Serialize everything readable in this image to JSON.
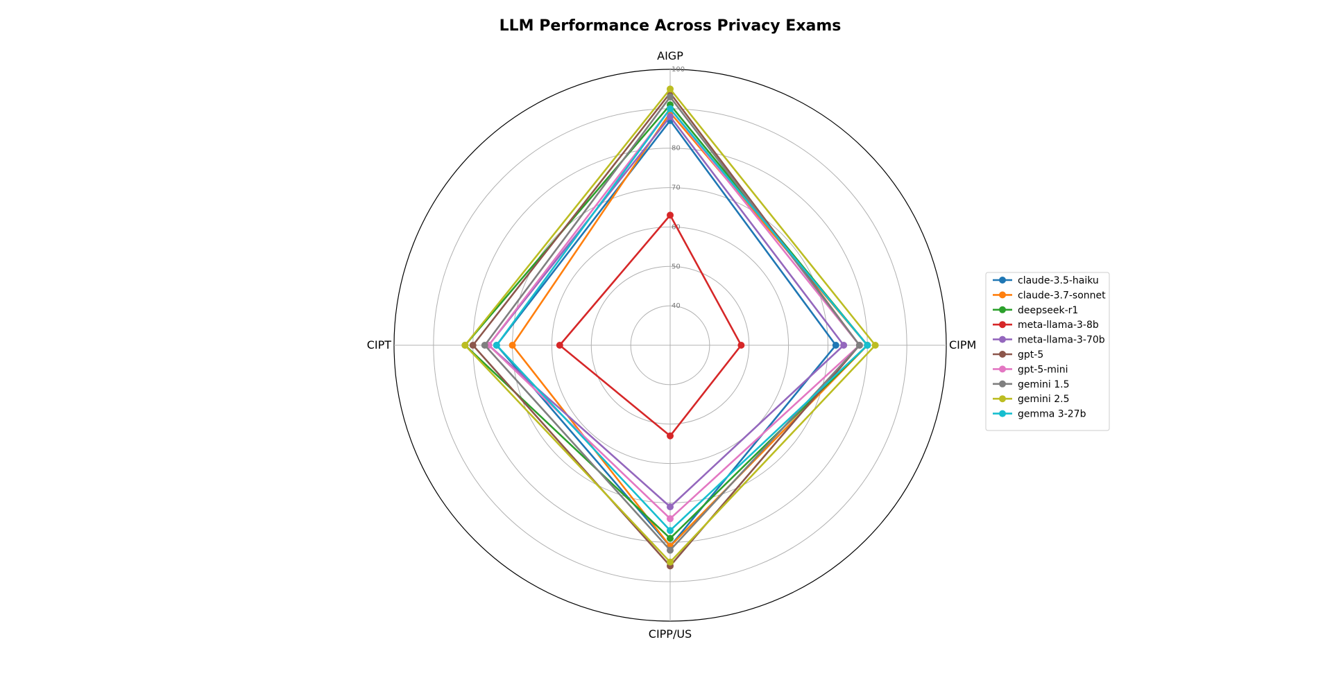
{
  "chart_data": {
    "type": "radar",
    "title": "LLM Performance Across Privacy Exams",
    "axes": [
      "AIGP",
      "CIPM",
      "CIPP/US",
      "CIPT"
    ],
    "radial_range": [
      30,
      100
    ],
    "radial_ticks": [
      40,
      50,
      60,
      70,
      80,
      90,
      100
    ],
    "radial_tick_labels": [
      "40",
      "50",
      "60",
      "70",
      "80",
      "100"
    ],
    "grid": true,
    "legend_position": "right",
    "series": [
      {
        "name": "claude-3.5-haiku",
        "color": "#1f77b4",
        "values": [
          87,
          72,
          81,
          74
        ]
      },
      {
        "name": "claude-3.7-sonnet",
        "color": "#ff7f0e",
        "values": [
          89,
          80,
          81,
          70
        ]
      },
      {
        "name": "deepseek-r1",
        "color": "#2ca02c",
        "values": [
          91,
          80,
          79,
          82
        ]
      },
      {
        "name": "meta-llama-3-8b",
        "color": "#d62728",
        "values": [
          63,
          48,
          53,
          58
        ]
      },
      {
        "name": "meta-llama-3-70b",
        "color": "#9467bd",
        "values": [
          88,
          74,
          71,
          76
        ]
      },
      {
        "name": "gpt-5",
        "color": "#8c564b",
        "values": [
          94,
          78,
          86,
          80
        ]
      },
      {
        "name": "gpt-5-mini",
        "color": "#e377c2",
        "values": [
          90,
          78,
          74,
          76
        ]
      },
      {
        "name": "gemini 1.5",
        "color": "#7f7f7f",
        "values": [
          93,
          78,
          82,
          77
        ]
      },
      {
        "name": "gemini 2.5",
        "color": "#bcbd22",
        "values": [
          95,
          82,
          85,
          82
        ]
      },
      {
        "name": "gemma 3-27b",
        "color": "#17becf",
        "values": [
          90,
          80,
          77,
          74
        ]
      }
    ]
  }
}
